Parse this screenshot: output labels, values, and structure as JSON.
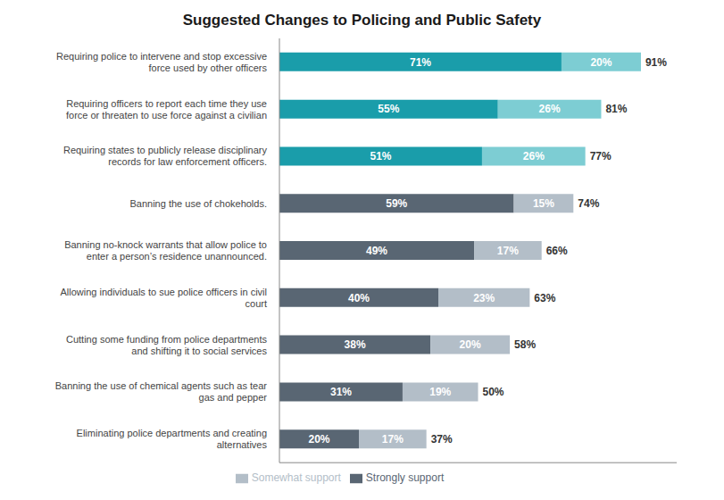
{
  "chart_data": {
    "type": "bar",
    "title": "Suggested Changes to Policing and Public Safety",
    "orientation": "horizontal",
    "stacked": true,
    "data_labels": true,
    "tick_labels": "y",
    "grid": false,
    "legend": "bottom",
    "categories": [
      "Requiring police to intervene and stop excessive\nforce used by other officers",
      "Requiring officers to report each time they use\nforce or threaten to use force against a civilian",
      "Requiring states to publicly release disciplinary\nrecords for law enforcement officers.",
      "Banning the use of chokeholds.",
      "Banning no-knock warrants that allow police to\nenter a person’s residence unannounced.",
      "Allowing individuals to sue police officers in civil\ncourt",
      "Cutting some funding from police departments\nand shifting it to social services",
      "Banning the use of chemical agents such as tear\ngas and pepper",
      "Eliminating police departments and creating\nalternatives"
    ],
    "series": [
      {
        "name": "Strongly support",
        "color": "#596673",
        "colors": [
          "#1a9daa",
          "#1a9daa",
          "#1a9daa",
          "#596673",
          "#596673",
          "#596673",
          "#596673",
          "#596673",
          "#596673"
        ],
        "values": [
          71,
          55,
          51,
          59,
          49,
          40,
          38,
          31,
          20
        ],
        "value_labels": [
          "71%",
          "55%",
          "51%",
          "59%",
          "49%",
          "40%",
          "38%",
          "31%",
          "20%"
        ]
      },
      {
        "name": "Somewhat support",
        "color": "#b3bec8",
        "colors": [
          "#7dcdd3",
          "#7dcdd3",
          "#7dcdd3",
          "#b3bec8",
          "#b3bec8",
          "#b3bec8",
          "#b3bec8",
          "#b3bec8",
          "#b3bec8"
        ],
        "values": [
          20,
          26,
          26,
          15,
          17,
          23,
          20,
          19,
          17
        ],
        "value_labels": [
          "20%",
          "26%",
          "26%",
          "15%",
          "17%",
          "23%",
          "20%",
          "19%",
          "17%"
        ]
      }
    ],
    "totals": [
      91,
      81,
      77,
      74,
      66,
      63,
      58,
      50,
      37
    ],
    "total_labels": [
      "91%",
      "81%",
      "77%",
      "74%",
      "66%",
      "63%",
      "58%",
      "50%",
      "37%"
    ],
    "xlim": [
      0,
      100
    ]
  }
}
